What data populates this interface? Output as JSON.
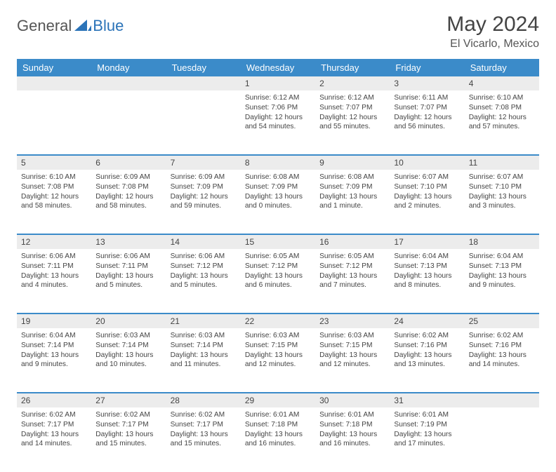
{
  "brand": {
    "part1": "General",
    "part2": "Blue"
  },
  "title": "May 2024",
  "location": "El Vicarlo, Mexico",
  "colors": {
    "header_bg": "#3b8bc9",
    "header_text": "#ffffff",
    "daynum_bg": "#ececec",
    "sep": "#3b8bc9",
    "text": "#444444",
    "logo_blue": "#2b73b8"
  },
  "weekdays": [
    "Sunday",
    "Monday",
    "Tuesday",
    "Wednesday",
    "Thursday",
    "Friday",
    "Saturday"
  ],
  "weeks": [
    {
      "nums": [
        "",
        "",
        "",
        "1",
        "2",
        "3",
        "4"
      ],
      "cells": [
        null,
        null,
        null,
        {
          "sr": "Sunrise: 6:12 AM",
          "ss": "Sunset: 7:06 PM",
          "d1": "Daylight: 12 hours",
          "d2": "and 54 minutes."
        },
        {
          "sr": "Sunrise: 6:12 AM",
          "ss": "Sunset: 7:07 PM",
          "d1": "Daylight: 12 hours",
          "d2": "and 55 minutes."
        },
        {
          "sr": "Sunrise: 6:11 AM",
          "ss": "Sunset: 7:07 PM",
          "d1": "Daylight: 12 hours",
          "d2": "and 56 minutes."
        },
        {
          "sr": "Sunrise: 6:10 AM",
          "ss": "Sunset: 7:08 PM",
          "d1": "Daylight: 12 hours",
          "d2": "and 57 minutes."
        }
      ]
    },
    {
      "nums": [
        "5",
        "6",
        "7",
        "8",
        "9",
        "10",
        "11"
      ],
      "cells": [
        {
          "sr": "Sunrise: 6:10 AM",
          "ss": "Sunset: 7:08 PM",
          "d1": "Daylight: 12 hours",
          "d2": "and 58 minutes."
        },
        {
          "sr": "Sunrise: 6:09 AM",
          "ss": "Sunset: 7:08 PM",
          "d1": "Daylight: 12 hours",
          "d2": "and 58 minutes."
        },
        {
          "sr": "Sunrise: 6:09 AM",
          "ss": "Sunset: 7:09 PM",
          "d1": "Daylight: 12 hours",
          "d2": "and 59 minutes."
        },
        {
          "sr": "Sunrise: 6:08 AM",
          "ss": "Sunset: 7:09 PM",
          "d1": "Daylight: 13 hours",
          "d2": "and 0 minutes."
        },
        {
          "sr": "Sunrise: 6:08 AM",
          "ss": "Sunset: 7:09 PM",
          "d1": "Daylight: 13 hours",
          "d2": "and 1 minute."
        },
        {
          "sr": "Sunrise: 6:07 AM",
          "ss": "Sunset: 7:10 PM",
          "d1": "Daylight: 13 hours",
          "d2": "and 2 minutes."
        },
        {
          "sr": "Sunrise: 6:07 AM",
          "ss": "Sunset: 7:10 PM",
          "d1": "Daylight: 13 hours",
          "d2": "and 3 minutes."
        }
      ]
    },
    {
      "nums": [
        "12",
        "13",
        "14",
        "15",
        "16",
        "17",
        "18"
      ],
      "cells": [
        {
          "sr": "Sunrise: 6:06 AM",
          "ss": "Sunset: 7:11 PM",
          "d1": "Daylight: 13 hours",
          "d2": "and 4 minutes."
        },
        {
          "sr": "Sunrise: 6:06 AM",
          "ss": "Sunset: 7:11 PM",
          "d1": "Daylight: 13 hours",
          "d2": "and 5 minutes."
        },
        {
          "sr": "Sunrise: 6:06 AM",
          "ss": "Sunset: 7:12 PM",
          "d1": "Daylight: 13 hours",
          "d2": "and 5 minutes."
        },
        {
          "sr": "Sunrise: 6:05 AM",
          "ss": "Sunset: 7:12 PM",
          "d1": "Daylight: 13 hours",
          "d2": "and 6 minutes."
        },
        {
          "sr": "Sunrise: 6:05 AM",
          "ss": "Sunset: 7:12 PM",
          "d1": "Daylight: 13 hours",
          "d2": "and 7 minutes."
        },
        {
          "sr": "Sunrise: 6:04 AM",
          "ss": "Sunset: 7:13 PM",
          "d1": "Daylight: 13 hours",
          "d2": "and 8 minutes."
        },
        {
          "sr": "Sunrise: 6:04 AM",
          "ss": "Sunset: 7:13 PM",
          "d1": "Daylight: 13 hours",
          "d2": "and 9 minutes."
        }
      ]
    },
    {
      "nums": [
        "19",
        "20",
        "21",
        "22",
        "23",
        "24",
        "25"
      ],
      "cells": [
        {
          "sr": "Sunrise: 6:04 AM",
          "ss": "Sunset: 7:14 PM",
          "d1": "Daylight: 13 hours",
          "d2": "and 9 minutes."
        },
        {
          "sr": "Sunrise: 6:03 AM",
          "ss": "Sunset: 7:14 PM",
          "d1": "Daylight: 13 hours",
          "d2": "and 10 minutes."
        },
        {
          "sr": "Sunrise: 6:03 AM",
          "ss": "Sunset: 7:14 PM",
          "d1": "Daylight: 13 hours",
          "d2": "and 11 minutes."
        },
        {
          "sr": "Sunrise: 6:03 AM",
          "ss": "Sunset: 7:15 PM",
          "d1": "Daylight: 13 hours",
          "d2": "and 12 minutes."
        },
        {
          "sr": "Sunrise: 6:03 AM",
          "ss": "Sunset: 7:15 PM",
          "d1": "Daylight: 13 hours",
          "d2": "and 12 minutes."
        },
        {
          "sr": "Sunrise: 6:02 AM",
          "ss": "Sunset: 7:16 PM",
          "d1": "Daylight: 13 hours",
          "d2": "and 13 minutes."
        },
        {
          "sr": "Sunrise: 6:02 AM",
          "ss": "Sunset: 7:16 PM",
          "d1": "Daylight: 13 hours",
          "d2": "and 14 minutes."
        }
      ]
    },
    {
      "nums": [
        "26",
        "27",
        "28",
        "29",
        "30",
        "31",
        ""
      ],
      "cells": [
        {
          "sr": "Sunrise: 6:02 AM",
          "ss": "Sunset: 7:17 PM",
          "d1": "Daylight: 13 hours",
          "d2": "and 14 minutes."
        },
        {
          "sr": "Sunrise: 6:02 AM",
          "ss": "Sunset: 7:17 PM",
          "d1": "Daylight: 13 hours",
          "d2": "and 15 minutes."
        },
        {
          "sr": "Sunrise: 6:02 AM",
          "ss": "Sunset: 7:17 PM",
          "d1": "Daylight: 13 hours",
          "d2": "and 15 minutes."
        },
        {
          "sr": "Sunrise: 6:01 AM",
          "ss": "Sunset: 7:18 PM",
          "d1": "Daylight: 13 hours",
          "d2": "and 16 minutes."
        },
        {
          "sr": "Sunrise: 6:01 AM",
          "ss": "Sunset: 7:18 PM",
          "d1": "Daylight: 13 hours",
          "d2": "and 16 minutes."
        },
        {
          "sr": "Sunrise: 6:01 AM",
          "ss": "Sunset: 7:19 PM",
          "d1": "Daylight: 13 hours",
          "d2": "and 17 minutes."
        },
        null
      ]
    }
  ]
}
